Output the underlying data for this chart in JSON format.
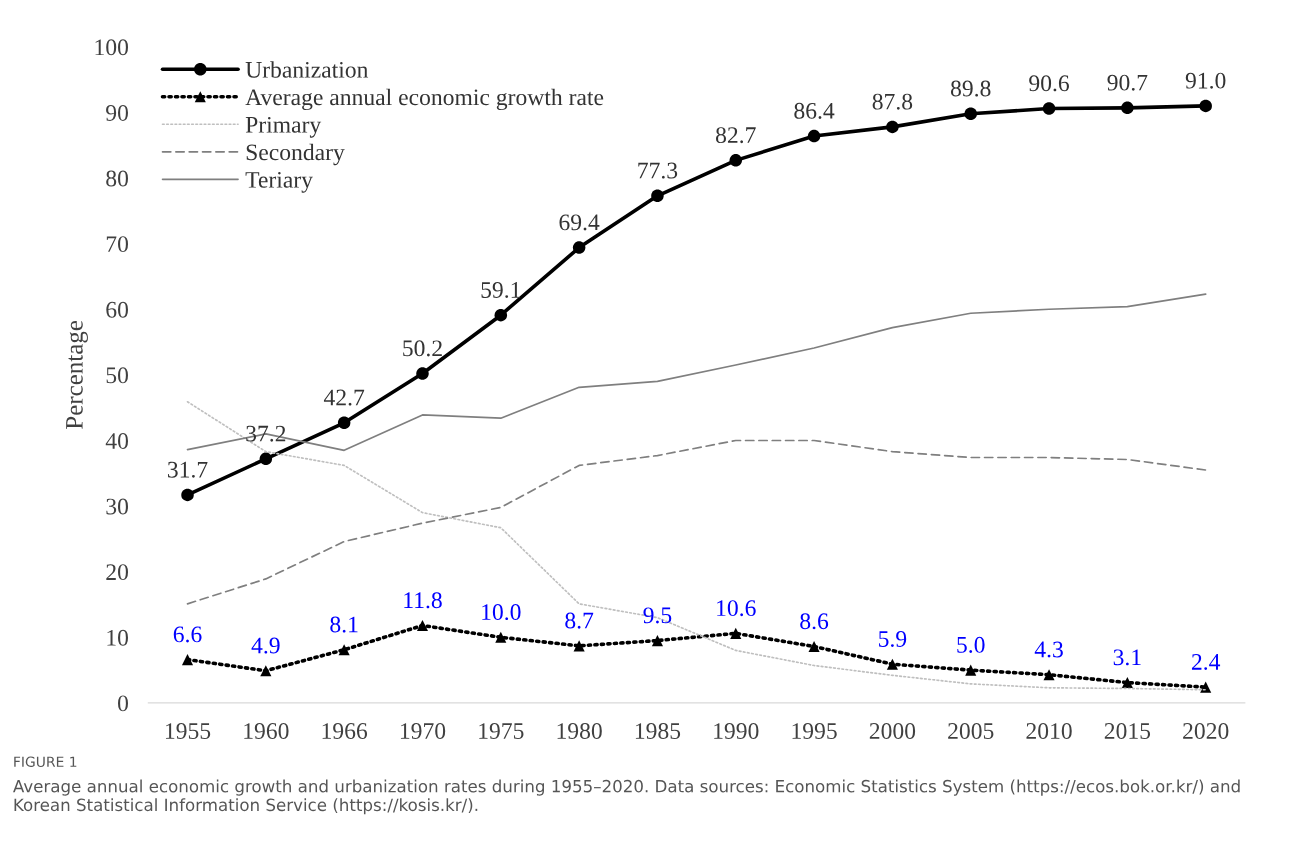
{
  "chart_data": {
    "type": "line",
    "ylabel": "Percentage",
    "categories": [
      "1955",
      "1960",
      "1966",
      "1970",
      "1975",
      "1980",
      "1985",
      "1990",
      "1995",
      "2000",
      "2005",
      "2010",
      "2015",
      "2020"
    ],
    "ylim": [
      0,
      100
    ],
    "yticks": [
      0,
      10,
      20,
      30,
      40,
      50,
      60,
      70,
      80,
      90,
      100
    ],
    "grid": false,
    "legend": "top left",
    "series": [
      {
        "name": "Urbanization",
        "color": "#000000",
        "marker": "circle",
        "line_style": "solid",
        "value_labels": [
          "31.7",
          "37.2",
          "42.7",
          "50.2",
          "59.1",
          "69.4",
          "77.3",
          "82.7",
          "86.4",
          "87.8",
          "89.8",
          "90.6",
          "90.7",
          "91.0"
        ],
        "values": [
          31.7,
          37.2,
          42.7,
          50.2,
          59.1,
          69.4,
          77.3,
          82.7,
          86.4,
          87.8,
          89.8,
          90.6,
          90.7,
          91.0
        ]
      },
      {
        "name": "Average annual economic growth rate",
        "color": "#000000",
        "marker": "triangle",
        "line_style": "dotted",
        "value_labels": [
          "6.6",
          "4.9",
          "8.1",
          "11.8",
          "10.0",
          "8.7",
          "9.5",
          "10.6",
          "8.6",
          "5.9",
          "5.0",
          "4.3",
          "3.1",
          "2.4"
        ],
        "values": [
          6.6,
          4.9,
          8.1,
          11.8,
          10.0,
          8.7,
          9.5,
          10.6,
          8.6,
          5.9,
          5.0,
          4.3,
          3.1,
          2.4
        ]
      },
      {
        "name": "Primary",
        "color": "#bfbfbf",
        "marker": "none",
        "line_style": "dotted",
        "values": [
          45.9,
          38.3,
          36.2,
          29.0,
          26.7,
          15.1,
          13.0,
          8.0,
          5.7,
          4.2,
          2.9,
          2.3,
          2.2,
          2.0
        ]
      },
      {
        "name": "Secondary",
        "color": "#7f7f7f",
        "marker": "none",
        "line_style": "dashed",
        "values": [
          15.1,
          18.9,
          24.6,
          27.4,
          29.8,
          36.2,
          37.7,
          40.0,
          40.0,
          38.3,
          37.4,
          37.4,
          37.1,
          35.5
        ]
      },
      {
        "name": "Teriary",
        "color": "#7f7f7f",
        "marker": "none",
        "line_style": "solid",
        "values": [
          38.6,
          41.0,
          38.5,
          43.9,
          43.4,
          48.1,
          49.0,
          51.5,
          54.1,
          57.2,
          59.4,
          60.0,
          60.4,
          62.3
        ]
      }
    ],
    "annotations": [
      "FIGURE 1",
      "Average annual economic growth and urbanization rates during 1955–2020. Data sources: Economic Statistics System (https://ecos.bok.or.kr/) and Korean Statistical Information Service (https://kosis.kr/)."
    ]
  }
}
